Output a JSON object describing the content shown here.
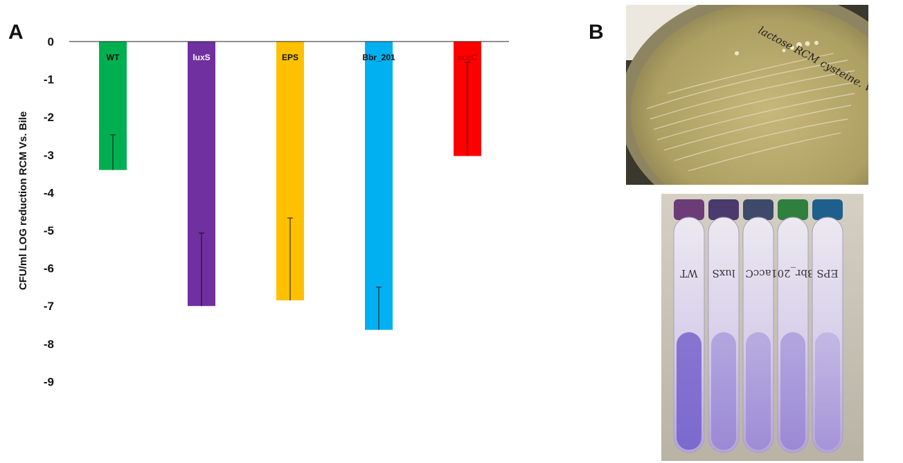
{
  "panels": {
    "a_letter": "A",
    "b_letter": "B"
  },
  "chart_data": {
    "type": "bar",
    "title": "",
    "xlabel": "",
    "ylabel": "CFU/ml LOG reduction RCM Vs. Bile",
    "categories": [
      "WT",
      "luxS",
      "EPS",
      "Bbr_201",
      "accC"
    ],
    "values": [
      -3.4,
      -7.0,
      -6.85,
      -7.63,
      -3.03
    ],
    "error_low": [
      -3.4,
      -7.0,
      -6.85,
      -7.63,
      -3.03
    ],
    "error_high": [
      -2.47,
      -5.07,
      -4.67,
      -6.5,
      -0.55
    ],
    "colors": [
      "#00b050",
      "#7030a0",
      "#ffc000",
      "#00b0f0",
      "#ff0000"
    ],
    "label_colors": [
      "#111111",
      "#ffffff",
      "#111111",
      "#111111",
      "#c00000"
    ],
    "ylim": [
      -9,
      0
    ],
    "yticks": [
      "0",
      "-1",
      "-2",
      "-3",
      "-4",
      "-5",
      "-6",
      "-7",
      "-8",
      "-9"
    ],
    "grid": false,
    "legend": "none"
  },
  "photos": {
    "plate_handwriting": "lactose RCM cysteine. WT Bile",
    "tube_labels": [
      "WT",
      "luxS",
      "accC",
      "Bbr_201",
      "EPS"
    ]
  }
}
